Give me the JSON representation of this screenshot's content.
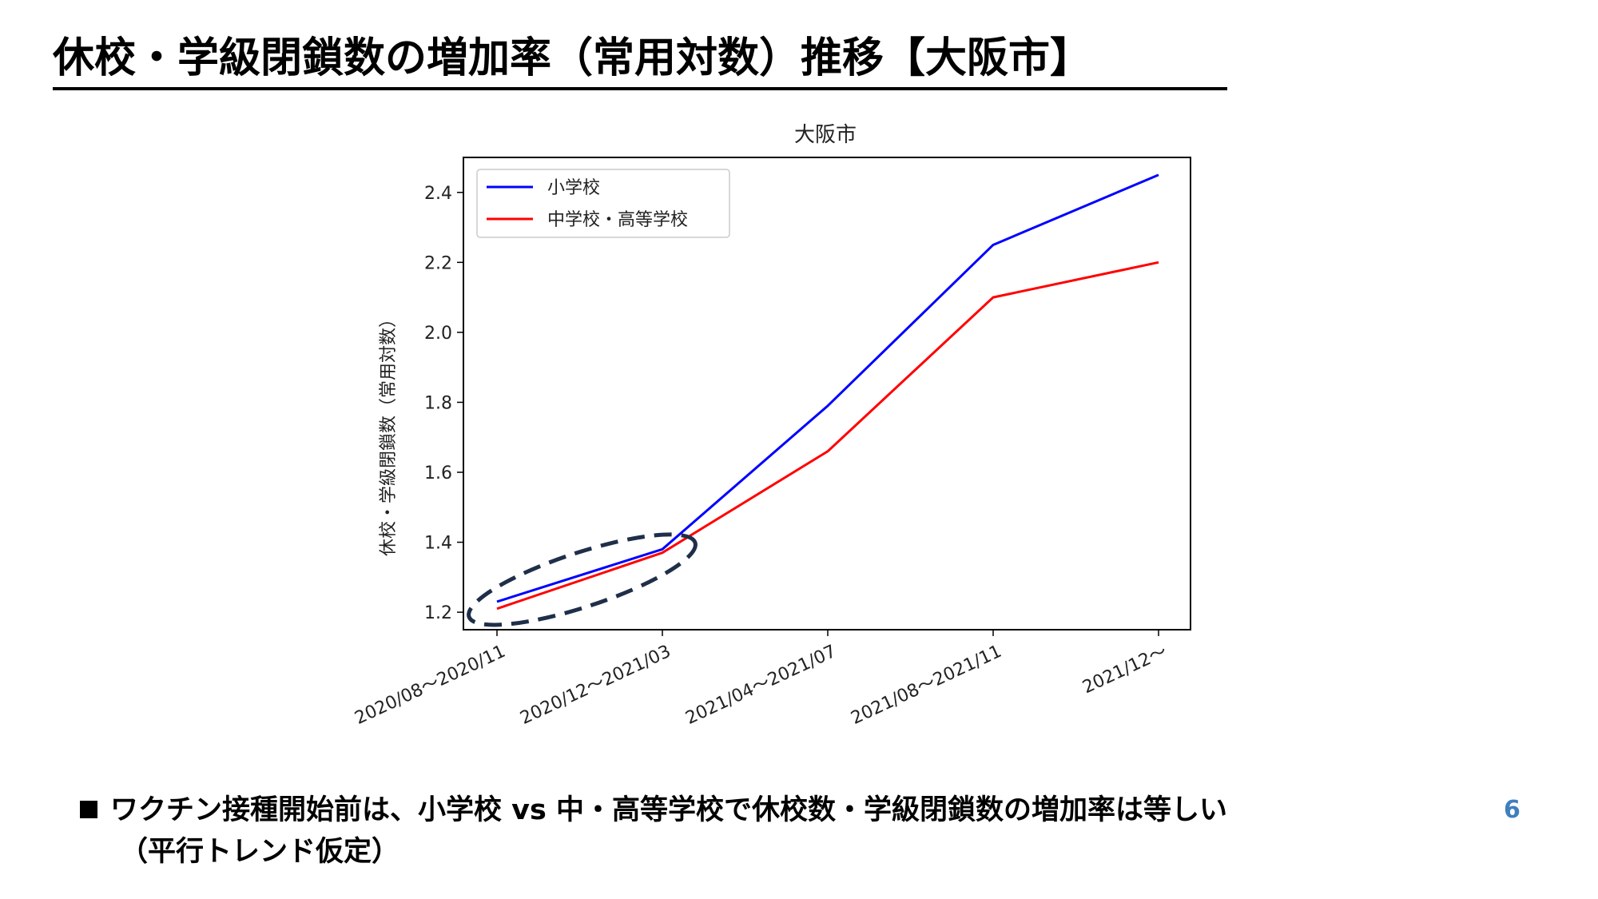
{
  "slide": {
    "title": "休校・学級閉鎖数の増加率（常用対数）推移【大阪市】",
    "bullet_line1": "ワクチン接種開始前は、小学校 vs 中・高等学校で休校数・学級閉鎖数の増加率は等しい",
    "bullet_line2": "（平行トレンド仮定）",
    "page_number": "6"
  },
  "chart_data": {
    "type": "line",
    "title": "大阪市",
    "ylabel": "休校・学級閉鎖数（常用対数）",
    "xlabel": "",
    "categories": [
      "2020/08～2020/11",
      "2020/12～2021/03",
      "2021/04～2021/07",
      "2021/08～2021/11",
      "2021/12～"
    ],
    "ylim": [
      1.15,
      2.5
    ],
    "yticks": [
      1.2,
      1.4,
      1.6,
      1.8,
      2.0,
      2.2,
      2.4
    ],
    "ytick_labels": [
      "1.2",
      "1.4",
      "1.6",
      "1.8",
      "2.0",
      "2.2",
      "2.4"
    ],
    "grid": false,
    "legend_position": "top-left",
    "series": [
      {
        "name": "小学校",
        "color": "#0000ff",
        "values": [
          1.23,
          1.38,
          1.79,
          2.25,
          2.45
        ]
      },
      {
        "name": "中学校・高等学校",
        "color": "#ff0000",
        "values": [
          1.21,
          1.37,
          1.66,
          2.1,
          2.2
        ]
      }
    ],
    "annotation": {
      "shape": "dashed-ellipse",
      "color": "#1f2f4a",
      "encloses_categories": [
        "2020/08～2020/11",
        "2020/12～2021/03"
      ]
    }
  }
}
